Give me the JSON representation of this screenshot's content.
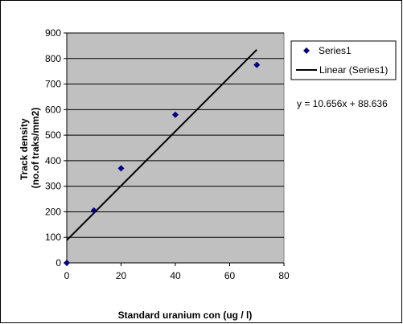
{
  "chart_data": {
    "type": "scatter",
    "xlabel": "Standard uranium con (ug / l)",
    "ylabel_lines": [
      "Track density",
      "(no.of traks/mm2)"
    ],
    "xlim": [
      0,
      80
    ],
    "ylim": [
      0,
      900
    ],
    "x_ticks": [
      0,
      20,
      40,
      60,
      80
    ],
    "y_ticks": [
      0,
      100,
      200,
      300,
      400,
      500,
      600,
      700,
      800,
      900
    ],
    "grid": "horizontal",
    "plot_background": "#c0c0c0",
    "series": [
      {
        "name": "Series1",
        "marker": "diamond",
        "color": "#000080",
        "x": [
          0,
          10,
          20,
          40,
          70
        ],
        "y": [
          0,
          205,
          370,
          580,
          775
        ]
      }
    ],
    "trendline": {
      "name": "Linear (Series1)",
      "equation": "y = 10.656x + 88.636",
      "slope": 10.656,
      "intercept": 88.636,
      "x_range": [
        0,
        70
      ],
      "color": "#000000"
    },
    "legend_position": "right"
  }
}
